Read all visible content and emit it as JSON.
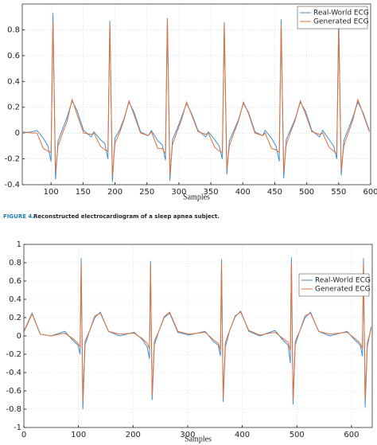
{
  "chart_data": [
    {
      "type": "line",
      "xlabel": "Samples",
      "xlim": [
        55,
        600
      ],
      "ylim": [
        -0.4,
        1
      ],
      "xticks": [
        100,
        150,
        200,
        250,
        300,
        350,
        400,
        450,
        500,
        550,
        600
      ],
      "yticks": [
        -0.4,
        -0.2,
        0,
        0.2,
        0.4,
        0.6,
        0.8
      ],
      "grid": true,
      "legend": "upper right",
      "x": [
        55,
        70,
        78,
        88,
        95,
        100,
        103,
        107,
        111,
        118,
        125,
        133,
        141,
        151,
        163,
        167,
        177,
        184,
        189,
        192,
        196,
        200,
        207,
        214,
        222,
        230,
        240,
        252,
        257,
        267,
        274,
        279,
        282,
        286,
        290,
        297,
        304,
        312,
        320,
        330,
        342,
        346,
        356,
        363,
        368,
        371,
        375,
        379,
        386,
        393,
        401,
        409,
        419,
        431,
        435,
        445,
        452,
        457,
        460,
        464,
        468,
        475,
        482,
        490,
        498,
        508,
        520,
        525,
        535,
        542,
        547,
        550,
        554,
        558,
        565,
        572,
        580,
        588,
        598
      ],
      "series": [
        {
          "name": "Real-World ECG",
          "color": "#3d8fd6",
          "values": [
            0,
            0.01,
            0.02,
            -0.04,
            -0.1,
            -0.22,
            0.93,
            -0.36,
            -0.06,
            0.03,
            0.12,
            0.25,
            0.17,
            0.02,
            -0.03,
            0.01,
            -0.05,
            -0.08,
            -0.2,
            0.87,
            -0.38,
            -0.04,
            0.02,
            0.11,
            0.24,
            0.16,
            0.01,
            -0.02,
            0.02,
            -0.06,
            -0.09,
            -0.21,
            0.89,
            -0.37,
            -0.05,
            0.03,
            0.12,
            0.23,
            0.15,
            0.02,
            -0.03,
            0.01,
            -0.05,
            -0.1,
            -0.2,
            0.86,
            -0.32,
            -0.06,
            0.02,
            0.1,
            0.23,
            0.16,
            0.01,
            -0.02,
            0.02,
            -0.04,
            -0.1,
            -0.22,
            0.88,
            -0.35,
            -0.05,
            0.03,
            0.11,
            0.24,
            0.17,
            0.02,
            -0.03,
            0.02,
            -0.05,
            -0.1,
            -0.2,
            0.9,
            -0.33,
            -0.06,
            0.03,
            0.12,
            0.24,
            0.16,
            0.02
          ]
        },
        {
          "name": "Generated ECG",
          "color": "#e0703a",
          "values": [
            0.01,
            0,
            0,
            -0.12,
            -0.14,
            -0.15,
            0.86,
            -0.3,
            -0.1,
            0,
            0.09,
            0.26,
            0.14,
            0,
            -0.01,
            0,
            -0.1,
            -0.13,
            -0.14,
            0.84,
            -0.33,
            -0.08,
            0,
            0.1,
            0.25,
            0.14,
            0,
            -0.02,
            0.01,
            -0.12,
            -0.12,
            -0.16,
            0.88,
            -0.32,
            -0.09,
            0.01,
            0.1,
            0.24,
            0.14,
            0.01,
            -0.01,
            0,
            -0.11,
            -0.14,
            -0.15,
            0.85,
            -0.28,
            -0.1,
            0,
            0.09,
            0.24,
            0.15,
            0,
            -0.02,
            0,
            -0.12,
            -0.13,
            -0.15,
            0.84,
            -0.3,
            -0.09,
            0.01,
            0.1,
            0.25,
            0.15,
            0.01,
            -0.01,
            0,
            -0.11,
            -0.14,
            -0.16,
            0.82,
            -0.29,
            -0.1,
            0,
            0.1,
            0.26,
            0.15,
            0.01
          ]
        }
      ],
      "caption_label": "FIGURE 4.",
      "caption": "Reconstructed electrocardiogram of a sleep apnea subject."
    },
    {
      "type": "line",
      "xlabel": "Samples",
      "xlim": [
        0,
        638
      ],
      "ylim": [
        -1,
        1
      ],
      "xticks": [
        0,
        100,
        200,
        300,
        400,
        500,
        600
      ],
      "yticks": [
        -1,
        -0.8,
        -0.6,
        -0.4,
        -0.2,
        0,
        0.2,
        0.4,
        0.6,
        0.8,
        1
      ],
      "grid": true,
      "legend": "center right",
      "x": [
        0,
        15,
        30,
        50,
        75,
        90,
        99,
        103,
        105,
        108,
        112,
        120,
        130,
        140,
        155,
        175,
        202,
        217,
        226,
        230,
        232,
        235,
        239,
        247,
        257,
        267,
        282,
        302,
        332,
        347,
        356,
        360,
        362,
        365,
        369,
        377,
        387,
        397,
        412,
        432,
        460,
        475,
        484,
        488,
        490,
        493,
        497,
        505,
        515,
        525,
        540,
        560,
        592,
        607,
        616,
        620,
        622,
        625,
        629,
        636
      ],
      "series": [
        {
          "name": "Real-World ECG",
          "color": "#3d8fd6",
          "values": [
            0.05,
            0.25,
            0.02,
            0,
            0.05,
            -0.05,
            -0.1,
            -0.2,
            0.85,
            -0.8,
            -0.1,
            0.05,
            0.2,
            0.26,
            0.05,
            0,
            0.04,
            -0.04,
            -0.12,
            -0.25,
            0.82,
            -0.7,
            -0.1,
            0.05,
            0.2,
            0.25,
            0.04,
            0.01,
            0.05,
            -0.06,
            -0.1,
            -0.22,
            0.84,
            -0.72,
            -0.12,
            0.06,
            0.21,
            0.27,
            0.05,
            0,
            0.06,
            -0.05,
            -0.1,
            -0.3,
            0.86,
            -0.75,
            -0.1,
            0.05,
            0.2,
            0.26,
            0.05,
            0,
            0.05,
            -0.05,
            -0.1,
            -0.22,
            0.85,
            -0.78,
            -0.12,
            0.1
          ]
        },
        {
          "name": "Generated ECG",
          "color": "#e0703a",
          "values": [
            0.04,
            0.24,
            0.02,
            0,
            0.03,
            -0.03,
            -0.08,
            -0.12,
            0.8,
            -0.72,
            -0.06,
            0.05,
            0.22,
            0.25,
            0.05,
            0.02,
            0.03,
            -0.03,
            -0.08,
            -0.14,
            0.78,
            -0.65,
            -0.06,
            0.05,
            0.21,
            0.26,
            0.05,
            0.02,
            0.04,
            -0.04,
            -0.08,
            -0.15,
            0.8,
            -0.68,
            -0.07,
            0.06,
            0.22,
            0.26,
            0.06,
            0.01,
            0.04,
            -0.03,
            -0.07,
            -0.16,
            0.8,
            -0.7,
            -0.06,
            0.05,
            0.22,
            0.25,
            0.05,
            0.02,
            0.04,
            -0.03,
            -0.08,
            -0.14,
            0.8,
            -0.7,
            -0.08,
            0.08
          ]
        }
      ]
    }
  ]
}
